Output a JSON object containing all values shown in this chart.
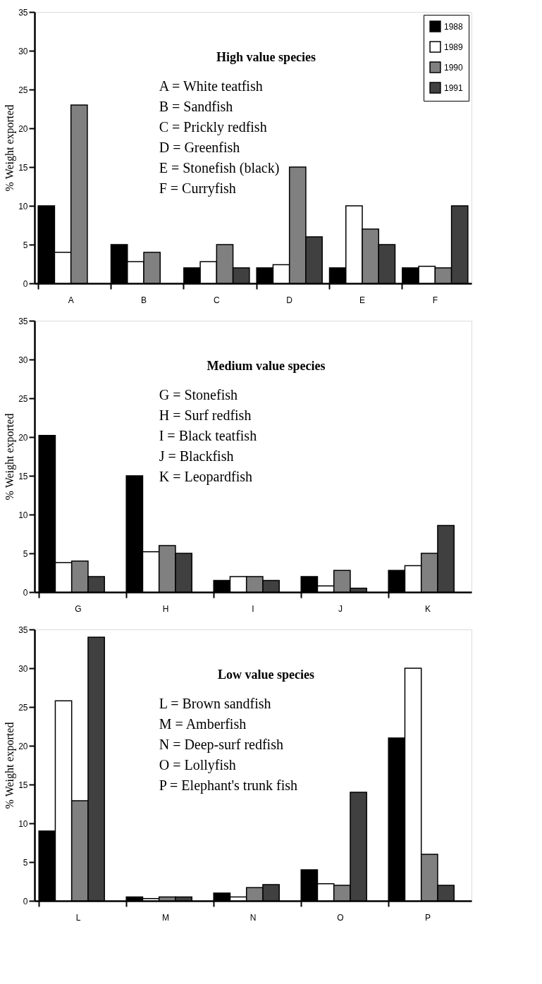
{
  "chart_data": [
    {
      "type": "bar",
      "title": "High value species",
      "ylabel": "% Weight exported",
      "categories": [
        "A",
        "B",
        "C",
        "D",
        "E",
        "F"
      ],
      "series": [
        {
          "name": "1988",
          "color": "#000000",
          "values": [
            10,
            5,
            2,
            2,
            2,
            2
          ]
        },
        {
          "name": "1989",
          "color": "#ffffff",
          "values": [
            4,
            2.8,
            2.8,
            2.4,
            10,
            2.2
          ]
        },
        {
          "name": "1990",
          "color": "#808080",
          "values": [
            23,
            4,
            5,
            15,
            7,
            2
          ]
        },
        {
          "name": "1991",
          "color": "#404040",
          "values": [
            null,
            null,
            2,
            6,
            5,
            10
          ]
        }
      ],
      "ylim": [
        0,
        35
      ],
      "yticks": [
        0,
        5,
        10,
        15,
        20,
        25,
        30,
        35
      ],
      "grid": false,
      "legend": "top right",
      "annotations": [
        "A = White teatfish",
        "B = Sandfish",
        "C = Prickly redfish",
        "D = Greenfish",
        "E = Stonefish (black)",
        "F = Curryfish"
      ]
    },
    {
      "type": "bar",
      "title": "Medium value species",
      "ylabel": "% Weight exported",
      "categories": [
        "G",
        "H",
        "I",
        "J",
        "K"
      ],
      "series": [
        {
          "color": "#000000",
          "values": [
            20.2,
            15,
            1.5,
            2,
            2.8
          ]
        },
        {
          "color": "#ffffff",
          "values": [
            3.8,
            5.2,
            2,
            0.8,
            3.4
          ]
        },
        {
          "color": "#808080",
          "values": [
            4,
            6,
            2,
            2.8,
            5
          ]
        },
        {
          "color": "#404040",
          "values": [
            2,
            5,
            1.5,
            0.5,
            8.6
          ]
        }
      ],
      "ylim": [
        0,
        35
      ],
      "yticks": [
        0,
        5,
        10,
        15,
        20,
        25,
        30,
        35
      ],
      "grid": false,
      "legend": false,
      "annotations": [
        "G = Stonefish",
        "H = Surf redfish",
        "I = Black teatfish",
        "J = Blackfish",
        "K = Leopardfish"
      ]
    },
    {
      "type": "bar",
      "title": "Low value species",
      "ylabel": "% Weight exported",
      "categories": [
        "L",
        "M",
        "N",
        "O",
        "P"
      ],
      "series": [
        {
          "color": "#000000",
          "values": [
            9,
            0.5,
            1,
            4,
            21
          ]
        },
        {
          "color": "#ffffff",
          "values": [
            25.8,
            0.3,
            0.5,
            2.2,
            30
          ]
        },
        {
          "color": "#808080",
          "values": [
            12.9,
            0.5,
            1.7,
            2,
            6
          ]
        },
        {
          "color": "#404040",
          "values": [
            34,
            0.5,
            2.1,
            14,
            2
          ]
        }
      ],
      "ylim": [
        0,
        35
      ],
      "yticks": [
        0,
        5,
        10,
        15,
        20,
        25,
        30,
        35
      ],
      "grid": false,
      "legend": false,
      "annotations": [
        "L = Brown sandfish",
        "M = Amberfish",
        "N = Deep-surf redfish",
        "O = Lollyfish",
        "P = Elephant's trunk fish"
      ]
    }
  ]
}
